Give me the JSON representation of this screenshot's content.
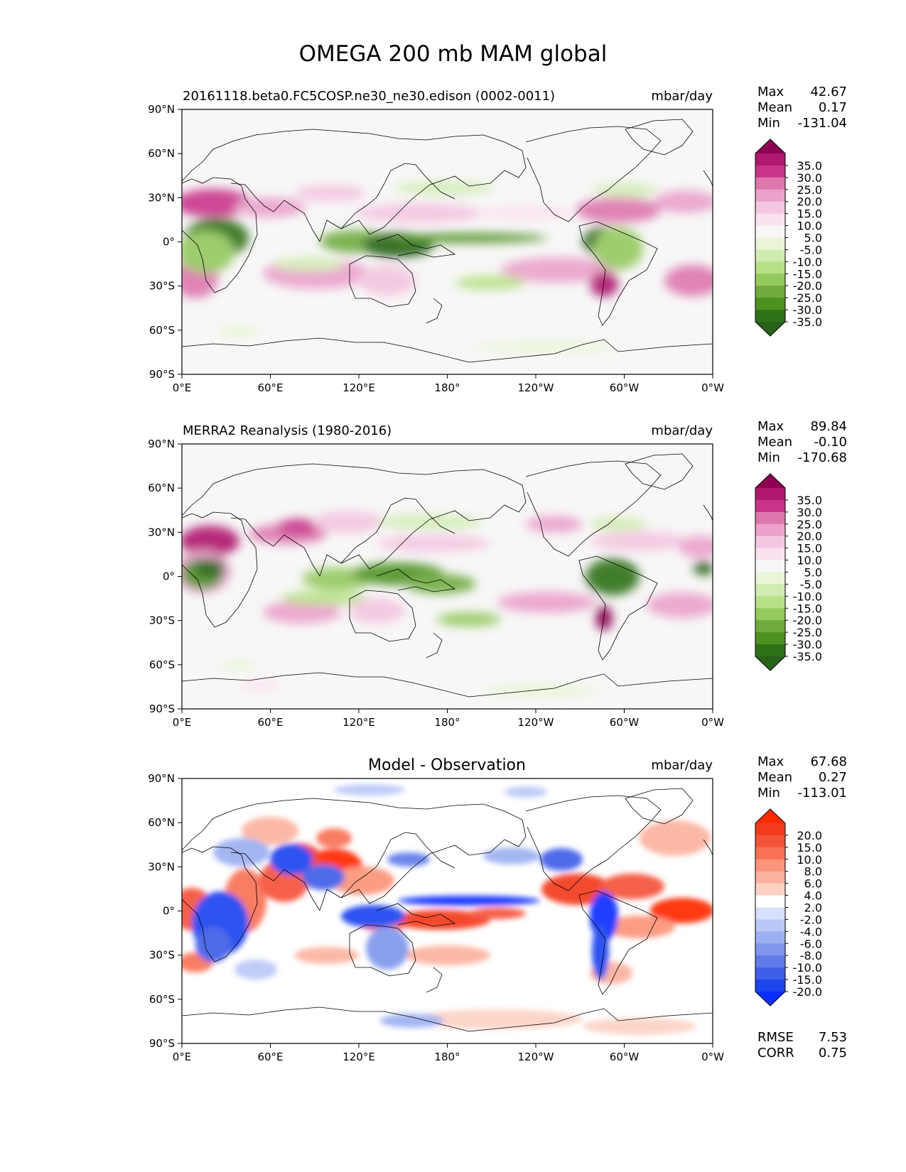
{
  "figure": {
    "title": "OMEGA 200 mb MAM global"
  },
  "chart_data": [
    {
      "type": "heatmap",
      "panel": "model",
      "title": "20161118.beta0.FC5COSP.ne30_ne30.edison (0002-0011)",
      "units": "mbar/day",
      "stats": [
        {
          "label": "Max",
          "value": "42.67"
        },
        {
          "label": "Mean",
          "value": "0.17"
        },
        {
          "label": "Min",
          "value": "-131.04"
        }
      ],
      "xticks": [
        "0°E",
        "60°E",
        "120°E",
        "180°",
        "120°W",
        "60°W",
        "0°W"
      ],
      "yticks": [
        "90°N",
        "60°N",
        "30°N",
        "0°",
        "30°S",
        "60°S",
        "90°S"
      ],
      "xlim": [
        0,
        360
      ],
      "ylim": [
        -90,
        90
      ],
      "colorbar": {
        "labels": [
          "35.0",
          "30.0",
          "25.0",
          "20.0",
          "15.0",
          "10.0",
          "5.0",
          "-5.0",
          "-10.0",
          "-15.0",
          "-20.0",
          "-25.0",
          "-30.0",
          "-35.0"
        ],
        "colors": [
          "#8e0152",
          "#b0176e",
          "#c9348b",
          "#de77ae",
          "#eba1cb",
          "#f4c6e0",
          "#fae2ef",
          "#f7f7f7",
          "#e9f5d6",
          "#d0ecb2",
          "#b8e186",
          "#94c95e",
          "#6fab3f",
          "#4d9221",
          "#2f7119",
          "#276419"
        ]
      }
    },
    {
      "type": "heatmap",
      "panel": "observation",
      "title": "MERRA2 Reanalysis (1980-2016)",
      "units": "mbar/day",
      "stats": [
        {
          "label": "Max",
          "value": "89.84"
        },
        {
          "label": "Mean",
          "value": "-0.10"
        },
        {
          "label": "Min",
          "value": "-170.68"
        }
      ],
      "xticks": [
        "0°E",
        "60°E",
        "120°E",
        "180°",
        "120°W",
        "60°W",
        "0°W"
      ],
      "yticks": [
        "90°N",
        "60°N",
        "30°N",
        "0°",
        "30°S",
        "60°S",
        "90°S"
      ],
      "xlim": [
        0,
        360
      ],
      "ylim": [
        -90,
        90
      ],
      "colorbar": {
        "labels": [
          "35.0",
          "30.0",
          "25.0",
          "20.0",
          "15.0",
          "10.0",
          "5.0",
          "-5.0",
          "-10.0",
          "-15.0",
          "-20.0",
          "-25.0",
          "-30.0",
          "-35.0"
        ],
        "colors": [
          "#8e0152",
          "#b0176e",
          "#c9348b",
          "#de77ae",
          "#eba1cb",
          "#f4c6e0",
          "#fae2ef",
          "#f7f7f7",
          "#e9f5d6",
          "#d0ecb2",
          "#b8e186",
          "#94c95e",
          "#6fab3f",
          "#4d9221",
          "#2f7119",
          "#276419"
        ]
      }
    },
    {
      "type": "heatmap",
      "panel": "difference",
      "title": "Model - Observation",
      "units": "mbar/day",
      "stats": [
        {
          "label": "Max",
          "value": "67.68"
        },
        {
          "label": "Mean",
          "value": "0.27"
        },
        {
          "label": "Min",
          "value": "-113.01"
        }
      ],
      "extra_stats": [
        {
          "label": "RMSE",
          "value": "7.53"
        },
        {
          "label": "CORR",
          "value": "0.75"
        }
      ],
      "xticks": [
        "0°E",
        "60°E",
        "120°E",
        "180°",
        "120°W",
        "60°W",
        "0°W"
      ],
      "yticks": [
        "90°N",
        "60°N",
        "30°N",
        "0°",
        "30°S",
        "60°S",
        "90°S"
      ],
      "xlim": [
        0,
        360
      ],
      "ylim": [
        -90,
        90
      ],
      "colorbar": {
        "labels": [
          "20.0",
          "15.0",
          "10.0",
          "8.0",
          "6.0",
          "4.0",
          "2.0",
          "-2.0",
          "-4.0",
          "-6.0",
          "-8.0",
          "-10.0",
          "-15.0",
          "-20.0"
        ],
        "colors": [
          "#ff2a00",
          "#f33b1f",
          "#f4533a",
          "#f87356",
          "#fb9479",
          "#fcb29f",
          "#fdd2c4",
          "#ffffff",
          "#d9e0fb",
          "#b9c8f6",
          "#9cb0f1",
          "#7f97ec",
          "#607be8",
          "#3f5fe8",
          "#1c45ef",
          "#0a2eff"
        ]
      }
    }
  ]
}
